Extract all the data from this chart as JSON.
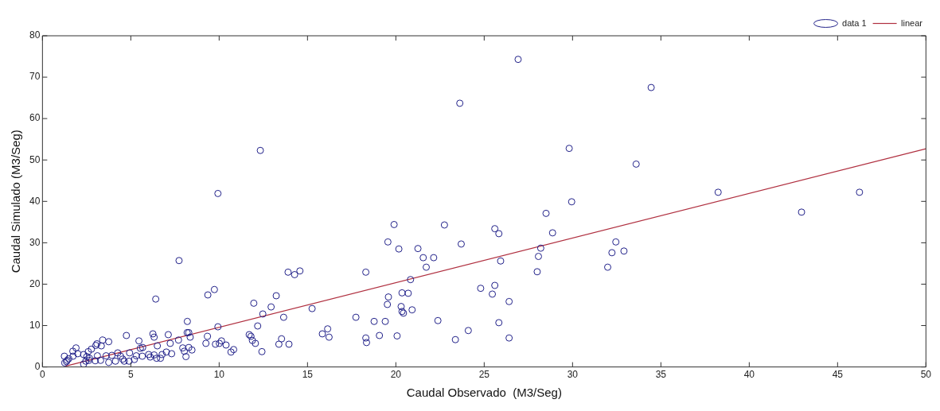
{
  "chart_data": {
    "type": "scatter",
    "xlabel": "Caudal Observado  (M3/Seg)",
    "ylabel": "Caudal Simulado (M3/Seg)",
    "xlim": [
      0,
      50
    ],
    "xticks": [
      0,
      5,
      10,
      15,
      20,
      25,
      30,
      35,
      40,
      45,
      50
    ],
    "ylim": [
      0,
      80
    ],
    "yticks": [
      0,
      10,
      20,
      30,
      40,
      50,
      60,
      70,
      80
    ],
    "grid": false,
    "legend": "top right",
    "marker": "circle",
    "series": [
      {
        "name": "data 1",
        "color": "#22228a",
        "marker": "circle",
        "x": [
          12.33,
          9.93,
          7.73,
          13.9,
          14.27,
          14.57,
          18.3,
          6.41,
          9.36,
          9.73,
          11.96,
          13.23,
          12.94,
          12.47,
          15.26,
          13.65,
          17.74,
          12.18,
          9.93,
          8.2,
          18.77,
          19.4,
          19.55,
          19.9,
          19.58,
          19.52,
          19.07,
          15.84,
          16.14,
          16.22,
          18.3,
          18.34,
          13.53,
          13.38,
          13.95,
          11.7,
          11.8,
          11.88,
          12.05,
          12.42,
          10.39,
          10.67,
          10.82,
          9.34,
          9.25,
          9.79,
          10.01,
          10.13,
          8.19,
          8.28,
          8.36,
          8.46,
          8.28,
          7.94,
          8.03,
          8.12,
          7.7,
          7.23,
          7.12,
          7.01,
          7.31,
          6.77,
          6.68,
          6.5,
          6.32,
          6.25,
          5.46,
          4.75,
          5.67,
          5.54,
          3.41,
          3.75,
          3.33,
          3.02,
          3.08,
          1.9,
          1.72,
          2.0,
          1.73,
          1.24,
          1.49,
          1.4,
          1.26,
          1.36,
          2.33,
          2.59,
          2.77,
          2.51,
          2.66,
          2.45,
          2.33,
          2.63,
          3.11,
          2.99,
          3.29,
          3.6,
          3.75,
          3.93,
          4.13,
          4.26,
          4.42,
          4.54,
          4.63,
          4.93,
          4.9,
          5.31,
          5.2,
          5.65,
          6.1,
          6.32,
          6.01,
          6.46,
          22.75,
          20.17,
          21.25,
          21.55,
          22.14,
          21.72,
          23.7,
          20.83,
          20.35,
          20.7,
          20.3,
          20.35,
          20.43,
          20.92,
          22.38,
          20.07,
          23.37,
          24.1,
          29.81,
          33.6,
          29.95,
          28.5,
          25.6,
          25.83,
          28.87,
          28.2,
          28.07,
          28.0,
          25.93,
          32.45,
          32.23,
          32.91,
          31.99,
          24.8,
          25.6,
          25.46,
          26.41,
          25.83,
          26.41,
          26.92,
          23.62,
          34.45,
          38.24,
          42.96,
          46.24
        ],
        "values": [
          52.3,
          41.9,
          25.7,
          22.9,
          22.3,
          23.2,
          22.9,
          16.4,
          17.4,
          18.7,
          15.4,
          17.2,
          14.5,
          12.8,
          14.1,
          12.0,
          12.0,
          9.9,
          9.7,
          11.0,
          11.0,
          11.0,
          30.2,
          34.4,
          16.9,
          15.1,
          7.6,
          8.0,
          9.2,
          7.2,
          7.0,
          5.9,
          6.8,
          5.5,
          5.5,
          7.8,
          7.4,
          6.4,
          5.7,
          3.7,
          5.3,
          3.6,
          4.2,
          7.4,
          5.7,
          5.5,
          5.7,
          6.3,
          8.3,
          8.3,
          7.2,
          4.1,
          4.7,
          4.6,
          3.8,
          2.5,
          6.5,
          5.7,
          7.8,
          3.6,
          3.2,
          3.0,
          2.1,
          5.1,
          7.2,
          8.0,
          6.3,
          7.6,
          4.7,
          4.5,
          6.5,
          6.1,
          5.1,
          5.2,
          5.6,
          4.6,
          3.8,
          3.2,
          2.6,
          2.6,
          2.0,
          1.6,
          1.0,
          1.3,
          3.0,
          3.7,
          4.3,
          2.5,
          2.1,
          1.4,
          0.7,
          1.6,
          2.7,
          1.5,
          1.6,
          2.7,
          1.1,
          2.8,
          1.4,
          3.4,
          2.6,
          1.9,
          1.4,
          3.4,
          1.4,
          2.7,
          1.8,
          2.6,
          2.4,
          2.9,
          3.0,
          2.1,
          34.3,
          28.5,
          28.6,
          26.4,
          26.4,
          24.1,
          29.7,
          21.1,
          17.9,
          17.8,
          14.6,
          13.4,
          13.0,
          13.8,
          11.2,
          7.5,
          6.6,
          8.8,
          52.8,
          49.0,
          39.9,
          37.1,
          33.4,
          32.2,
          32.4,
          28.7,
          26.7,
          23.0,
          25.6,
          30.2,
          27.6,
          28.0,
          24.1,
          19.0,
          19.7,
          17.6,
          15.8,
          10.7,
          7.0,
          74.3,
          63.7,
          67.5,
          42.2,
          37.4,
          42.2
        ]
      },
      {
        "name": "linear",
        "type": "line",
        "color": "#b03040",
        "marker": "none",
        "line_style": "solid",
        "x": [
          1.3,
          50
        ],
        "values": [
          0.2,
          52.7
        ]
      }
    ]
  }
}
